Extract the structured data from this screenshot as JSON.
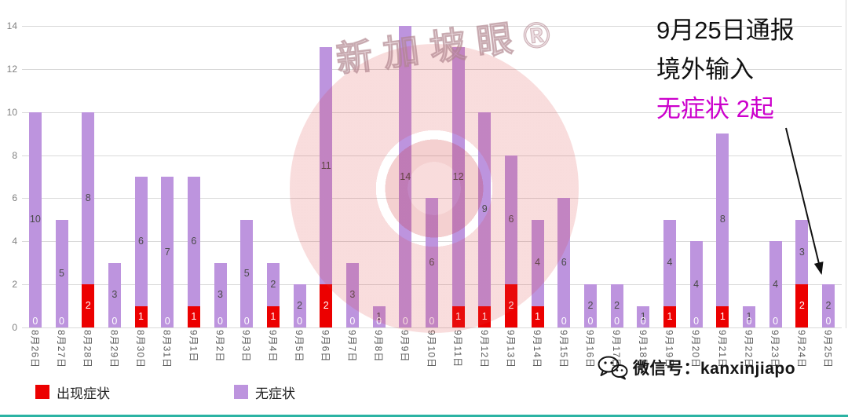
{
  "colors": {
    "symptomatic": "#ec0000",
    "asymptomatic": "#bd94de",
    "magenta": "#cc00cc",
    "grid": "#d9d9d9",
    "axis_text": "#808080",
    "bar_label": "#4a4a4a",
    "bar_label_on_red": "#ffffff",
    "teal_strip": "#2bb3a3"
  },
  "watermark": {
    "text": "新加坡眼®"
  },
  "annotation": {
    "line1": "9月25日通报",
    "line2": "境外输入",
    "line3": "无症状 2起"
  },
  "legend": {
    "symptomatic": "出现症状",
    "asymptomatic": "无症状"
  },
  "wechat": {
    "label": "微信号：kanxinjiapo"
  },
  "chart_data": {
    "type": "bar",
    "stacked": true,
    "title": "",
    "xlabel": "",
    "ylabel": "",
    "grid": true,
    "data_labels": true,
    "legend_position": "bottom-left",
    "ylim": [
      0,
      14
    ],
    "y_ticks": [
      0,
      2,
      4,
      6,
      8,
      10,
      12,
      14
    ],
    "categories": [
      "8月26日",
      "8月27日",
      "8月28日",
      "8月29日",
      "8月30日",
      "8月31日",
      "9月1日",
      "9月2日",
      "9月3日",
      "9月4日",
      "9月5日",
      "9月6日",
      "9月7日",
      "9月8日",
      "9月9日",
      "9月10日",
      "9月11日",
      "9月12日",
      "9月13日",
      "9月14日",
      "9月15日",
      "9月16日",
      "9月17日",
      "9月18日",
      "9月19日",
      "9月20日",
      "9月21日",
      "9月22日",
      "9月23日",
      "9月24日",
      "9月25日"
    ],
    "series": [
      {
        "name": "出现症状",
        "color_key": "symptomatic",
        "values": [
          0,
          0,
          2,
          0,
          1,
          0,
          1,
          0,
          0,
          1,
          0,
          2,
          0,
          0,
          0,
          0,
          1,
          1,
          2,
          1,
          0,
          0,
          0,
          0,
          1,
          0,
          1,
          0,
          0,
          2,
          0
        ]
      },
      {
        "name": "无症状",
        "color_key": "asymptomatic",
        "values": [
          10,
          5,
          8,
          3,
          6,
          7,
          6,
          3,
          5,
          2,
          2,
          11,
          3,
          1,
          14,
          6,
          12,
          9,
          6,
          4,
          6,
          2,
          2,
          1,
          4,
          4,
          8,
          1,
          4,
          3,
          2
        ]
      }
    ]
  }
}
